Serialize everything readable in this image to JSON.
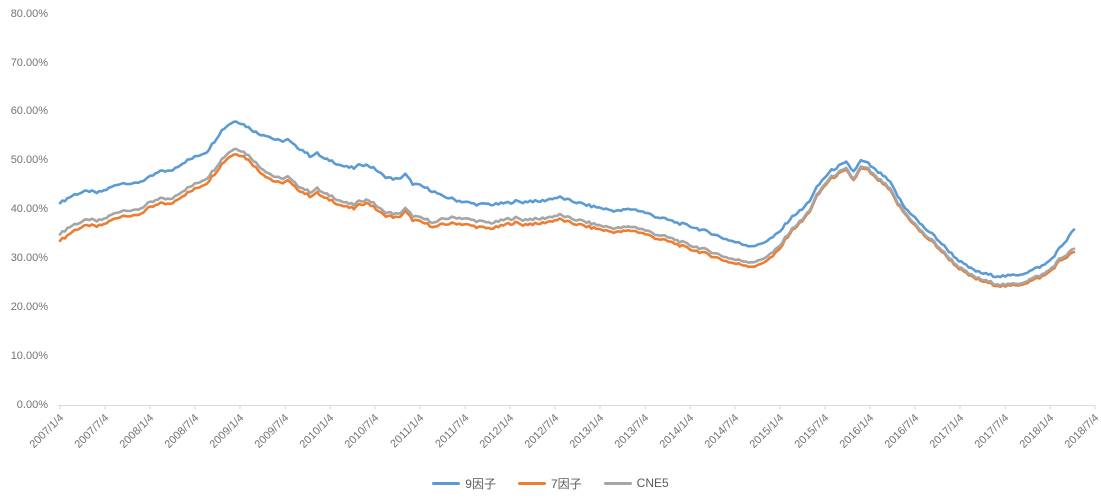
{
  "chart_data": {
    "type": "line",
    "title": "",
    "xlabel": "",
    "ylabel": "",
    "ylim": [
      0,
      80
    ],
    "y_tick_labels": [
      "80.00%",
      "70.00%",
      "60.00%",
      "50.00%",
      "40.00%",
      "30.00%",
      "20.00%",
      "10.00%",
      "0.00%"
    ],
    "x_tick_labels": [
      "2007/1/4",
      "2007/7/4",
      "2008/1/4",
      "2008/7/4",
      "2009/1/4",
      "2009/7/4",
      "2010/1/4",
      "2010/7/4",
      "2011/1/4",
      "2011/7/4",
      "2012/1/4",
      "2012/7/4",
      "2013/1/4",
      "2013/7/4",
      "2014/1/4",
      "2014/7/4",
      "2015/1/4",
      "2015/7/4",
      "2016/1/4",
      "2016/7/4",
      "2017/1/4",
      "2017/7/4",
      "2018/1/4",
      "2018/7/4"
    ],
    "x_sampling": "monthly 2007/1 through 2018/7, values in percent",
    "grid": false,
    "legend_position": "bottom-center",
    "axis_line_color": "#d9d9d9",
    "tick_label_color": "#737373",
    "series": [
      {
        "name": "9因子",
        "color": "#5B9BD5",
        "values": [
          41.3,
          42.3,
          43.1,
          43.5,
          43.8,
          43.4,
          43.9,
          44.6,
          45.3,
          45.5,
          45.2,
          45.8,
          46.4,
          47.3,
          48.0,
          47.8,
          48.9,
          49.8,
          50.5,
          51.2,
          51.9,
          54.0,
          56.2,
          57.5,
          58.2,
          57.4,
          56.5,
          55.5,
          55.3,
          54.5,
          54.0,
          54.3,
          53.0,
          52.2,
          51.0,
          51.5,
          50.3,
          50.0,
          49.2,
          48.7,
          48.5,
          49.3,
          49.0,
          48.2,
          46.9,
          46.4,
          46.2,
          47.2,
          45.3,
          44.9,
          44.3,
          43.6,
          42.7,
          42.4,
          41.9,
          41.6,
          41.3,
          41.0,
          41.2,
          41.0,
          41.2,
          41.4,
          41.7,
          41.5,
          41.8,
          41.6,
          41.9,
          42.3,
          42.5,
          42.0,
          41.6,
          41.2,
          40.8,
          40.5,
          40.2,
          39.9,
          39.7,
          40.0,
          40.1,
          39.7,
          39.2,
          38.6,
          38.2,
          37.8,
          37.3,
          36.9,
          36.5,
          36.0,
          35.5,
          35.0,
          34.3,
          33.8,
          33.3,
          32.9,
          32.6,
          32.7,
          33.5,
          34.3,
          35.5,
          37.5,
          39.0,
          40.0,
          41.8,
          44.5,
          46.5,
          48.0,
          48.9,
          49.6,
          47.8,
          50.0,
          49.4,
          48.0,
          47.0,
          45.5,
          42.8,
          40.3,
          39.0,
          37.2,
          35.8,
          34.6,
          33.0,
          31.5,
          30.0,
          28.8,
          27.9,
          27.2,
          26.8,
          26.5,
          26.4,
          26.4,
          26.6,
          26.9,
          27.4,
          28.1,
          28.7,
          30.0,
          32.0,
          33.8,
          35.9
        ]
      },
      {
        "name": "7因子",
        "color": "#ED7D31",
        "values": [
          33.6,
          34.7,
          35.8,
          36.4,
          36.8,
          36.5,
          37.0,
          37.8,
          38.5,
          38.9,
          38.6,
          39.2,
          40.2,
          40.8,
          41.4,
          41.0,
          42.2,
          43.1,
          43.9,
          44.7,
          45.5,
          47.3,
          49.3,
          50.8,
          51.5,
          50.9,
          49.7,
          48.0,
          46.9,
          45.9,
          45.4,
          45.9,
          44.5,
          43.6,
          42.8,
          43.4,
          42.3,
          41.9,
          41.0,
          40.5,
          40.2,
          41.2,
          41.3,
          40.1,
          38.9,
          38.6,
          38.3,
          39.6,
          37.9,
          37.5,
          37.0,
          36.4,
          36.9,
          37.1,
          37.2,
          37.0,
          36.7,
          36.4,
          36.2,
          36.2,
          36.6,
          37.1,
          37.3,
          36.9,
          37.1,
          37.0,
          37.4,
          37.7,
          38.0,
          37.5,
          37.1,
          36.8,
          36.4,
          36.1,
          35.8,
          35.5,
          35.4,
          35.6,
          35.7,
          35.3,
          34.8,
          34.2,
          33.8,
          33.4,
          32.9,
          32.3,
          31.8,
          31.4,
          30.9,
          30.4,
          29.8,
          29.3,
          28.9,
          28.7,
          28.4,
          28.5,
          29.5,
          30.4,
          32.0,
          34.5,
          36.3,
          37.6,
          39.6,
          42.6,
          44.8,
          46.4,
          47.3,
          48.0,
          46.0,
          48.4,
          48.0,
          46.4,
          45.3,
          43.8,
          41.1,
          39.1,
          37.4,
          35.6,
          34.2,
          33.0,
          31.4,
          29.9,
          28.4,
          27.2,
          26.3,
          25.6,
          25.1,
          24.7,
          24.4,
          24.3,
          24.5,
          24.8,
          25.3,
          25.9,
          26.5,
          27.7,
          29.4,
          30.3,
          31.3
        ]
      },
      {
        "name": "CNE5",
        "color": "#A5A5A5",
        "values": [
          34.9,
          36.2,
          37.0,
          37.5,
          38.0,
          37.6,
          38.1,
          38.9,
          39.6,
          40.0,
          39.7,
          40.3,
          41.2,
          41.8,
          42.4,
          42.0,
          43.2,
          44.1,
          44.9,
          45.7,
          46.5,
          48.3,
          50.3,
          51.8,
          52.6,
          51.8,
          50.7,
          49.0,
          47.9,
          46.9,
          46.3,
          46.7,
          45.3,
          44.4,
          43.6,
          44.3,
          43.2,
          42.8,
          41.9,
          41.3,
          41.0,
          41.9,
          42.0,
          40.9,
          39.6,
          39.3,
          39.0,
          40.2,
          38.7,
          38.3,
          37.9,
          37.3,
          38.0,
          38.3,
          38.4,
          38.2,
          37.9,
          37.6,
          37.4,
          37.3,
          37.7,
          38.1,
          38.3,
          37.9,
          38.1,
          38.0,
          38.3,
          38.6,
          38.9,
          38.4,
          38.0,
          37.7,
          37.3,
          36.9,
          36.6,
          36.3,
          36.2,
          36.4,
          36.5,
          36.1,
          35.6,
          35.0,
          34.6,
          34.2,
          33.7,
          33.1,
          32.6,
          32.2,
          31.7,
          31.2,
          30.6,
          30.1,
          29.7,
          29.5,
          29.3,
          29.4,
          30.3,
          31.2,
          32.6,
          34.9,
          36.6,
          37.9,
          39.9,
          42.9,
          45.1,
          46.7,
          47.6,
          48.3,
          46.3,
          48.7,
          48.3,
          46.7,
          45.6,
          44.1,
          41.4,
          39.4,
          37.7,
          35.9,
          34.5,
          33.3,
          31.7,
          30.2,
          28.7,
          27.5,
          26.6,
          25.9,
          25.4,
          25.0,
          24.7,
          24.6,
          24.8,
          25.1,
          25.7,
          26.3,
          26.9,
          28.1,
          29.8,
          30.8,
          32.0
        ]
      }
    ]
  },
  "legend": {
    "items": [
      {
        "label": "9因子",
        "color": "#5B9BD5"
      },
      {
        "label": "7因子",
        "color": "#ED7D31"
      },
      {
        "label": "CNE5",
        "color": "#A5A5A5"
      }
    ]
  }
}
